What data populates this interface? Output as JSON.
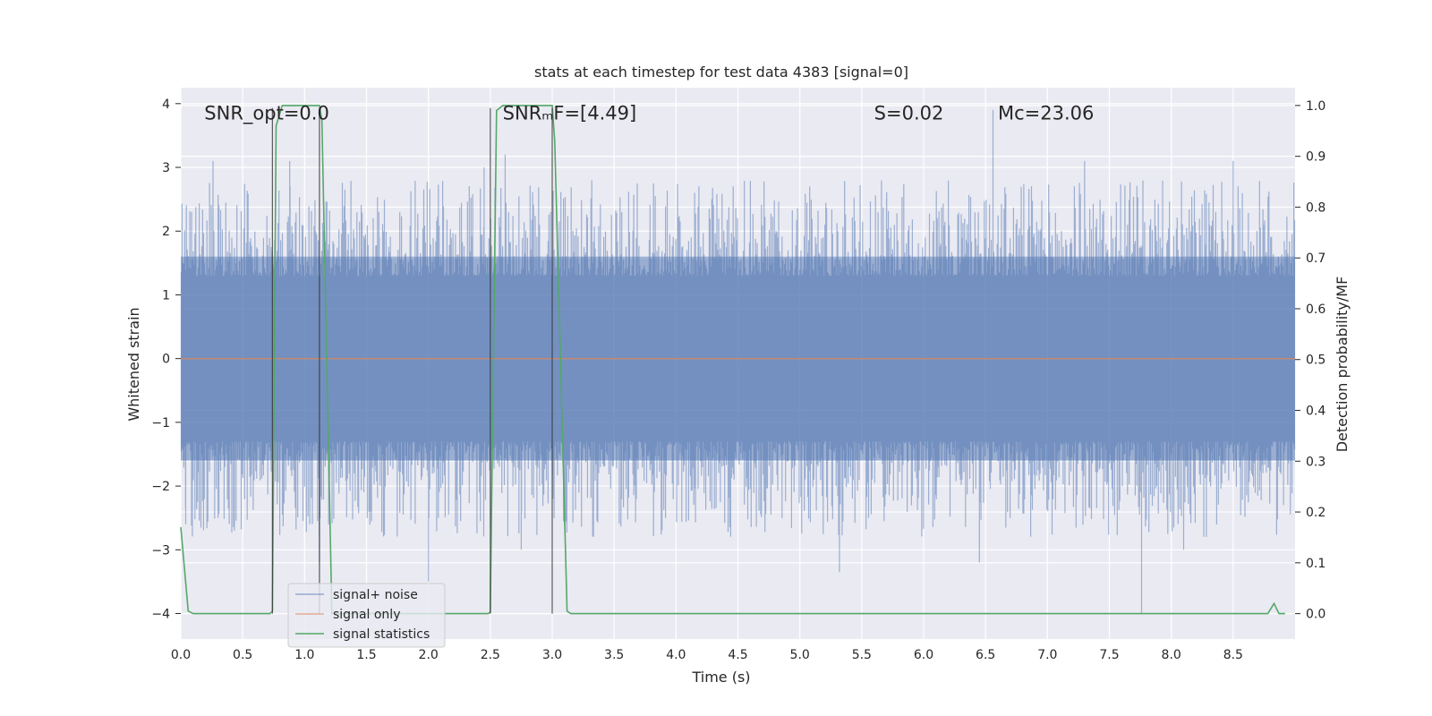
{
  "chart_data": {
    "type": "line",
    "title": "stats at each timestep for test data 4383 [signal=0]",
    "xlabel": "Time (s)",
    "ylabel_left": "Whitened strain",
    "ylabel_right": "Detection probability/MF",
    "xlim": [
      0,
      9.0
    ],
    "ylim_left": [
      -4.4,
      4.25
    ],
    "ylim_right": [
      -0.05,
      1.035
    ],
    "x_ticks": [
      0.0,
      0.5,
      1.0,
      1.5,
      2.0,
      2.5,
      3.0,
      3.5,
      4.0,
      4.5,
      5.0,
      5.5,
      6.0,
      6.5,
      7.0,
      7.5,
      8.0,
      8.5
    ],
    "x_tick_labels": [
      "0.0",
      "0.5",
      "1.0",
      "1.5",
      "2.0",
      "2.5",
      "3.0",
      "3.5",
      "4.0",
      "4.5",
      "5.0",
      "5.5",
      "6.0",
      "6.5",
      "7.0",
      "7.5",
      "8.0",
      "8.5"
    ],
    "y_left_ticks": [
      4,
      3,
      2,
      1,
      0,
      -1,
      -2,
      -3,
      -4
    ],
    "y_left_tick_labels": [
      "4",
      "3",
      "2",
      "1",
      "0",
      "−1",
      "−2",
      "−3",
      "−4"
    ],
    "y_right_ticks": [
      1.0,
      0.9,
      0.8,
      0.7,
      0.6,
      0.5,
      0.4,
      0.3,
      0.2,
      0.1,
      0.0
    ],
    "y_right_tick_labels": [
      "1.0",
      "0.9",
      "0.8",
      "0.7",
      "0.6",
      "0.5",
      "0.4",
      "0.3",
      "0.2",
      "0.1",
      "0.0"
    ],
    "grid": true,
    "annotations": [
      {
        "id": "snr-opt",
        "text": "SNR_opt=0.0",
        "x": 0.19,
        "y_left": 3.85
      },
      {
        "id": "snr-mf",
        "text": "SNRₘF=[4.49]",
        "x": 2.6,
        "y_left": 3.85
      },
      {
        "id": "s-stat",
        "text": "S=0.02",
        "x": 5.6,
        "y_left": 3.85
      },
      {
        "id": "chirp-mass",
        "text": "Mᴄ=23.06",
        "x": 6.6,
        "y_left": 3.85
      }
    ],
    "vertical_markers": [
      0.74,
      1.12,
      2.5,
      3.0
    ],
    "series": [
      {
        "name": "signal+ noise",
        "color": "#4c72b0",
        "style": "noise",
        "axis": "left",
        "envelope_upper": 1.6,
        "envelope_lower": -1.6,
        "spike_peaks": [
          {
            "x": 0.26,
            "y": 3.1
          },
          {
            "x": 0.88,
            "y": 3.1
          },
          {
            "x": 1.6,
            "y": 2.3
          },
          {
            "x": 2.45,
            "y": 3.0
          },
          {
            "x": 2.62,
            "y": 3.2
          },
          {
            "x": 4.15,
            "y": 2.6
          },
          {
            "x": 5.08,
            "y": 2.7
          },
          {
            "x": 5.7,
            "y": 2.5
          },
          {
            "x": 6.56,
            "y": 3.9
          },
          {
            "x": 7.3,
            "y": 3.1
          },
          {
            "x": 8.5,
            "y": 3.1
          },
          {
            "x": 0.04,
            "y": -2.6
          },
          {
            "x": 1.12,
            "y": -3.2
          },
          {
            "x": 2.0,
            "y": -3.5
          },
          {
            "x": 2.75,
            "y": -3.0
          },
          {
            "x": 5.32,
            "y": -3.35
          },
          {
            "x": 6.45,
            "y": -3.2
          },
          {
            "x": 7.76,
            "y": -4.0
          },
          {
            "x": 8.1,
            "y": -3.0
          }
        ]
      },
      {
        "name": "signal only",
        "color": "#dd8452",
        "axis": "left",
        "x": [
          0.0,
          9.0
        ],
        "y": [
          0.0,
          0.0
        ]
      },
      {
        "name": "signal statistics",
        "color": "#55a868",
        "axis": "right",
        "x": [
          0.0,
          0.06,
          0.1,
          0.72,
          0.74,
          0.77,
          0.82,
          1.12,
          1.14,
          1.22,
          1.3,
          2.48,
          2.5,
          2.55,
          2.6,
          3.0,
          3.02,
          3.12,
          3.15,
          8.78,
          8.83,
          8.87,
          8.92
        ],
        "y": [
          0.17,
          0.005,
          0.0,
          0.0,
          0.005,
          0.96,
          1.0,
          1.0,
          0.97,
          0.0,
          0.0,
          0.0,
          0.003,
          0.99,
          1.0,
          1.0,
          0.93,
          0.005,
          0.0,
          0.0,
          0.02,
          0.0,
          0.0
        ]
      }
    ],
    "legend": {
      "position": "lower-left",
      "entries": [
        "signal+ noise",
        "signal only",
        "signal statistics"
      ]
    }
  }
}
